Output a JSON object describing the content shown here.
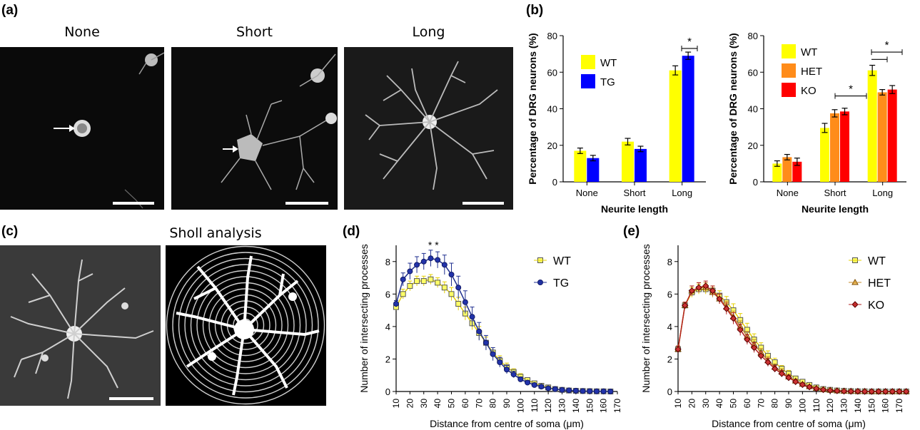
{
  "panel_labels": {
    "a": "(a)",
    "b": "(b)",
    "c": "(c)",
    "d": "(d)",
    "e": "(e)"
  },
  "panel_a": {
    "titles": [
      "None",
      "Short",
      "Long"
    ]
  },
  "panel_c": {
    "title": "Sholl analysis"
  },
  "colors": {
    "wt": "#ffff00",
    "tg": "#0000ff",
    "het": "#ff8c1a",
    "ko": "#ff0000",
    "line_tg": "#1f2f8f",
    "line_wt": "#e6d000",
    "line_het": "#c48a2a",
    "line_ko": "#b22222"
  },
  "chart_data": [
    {
      "id": "b_left",
      "type": "bar",
      "categories": [
        "None",
        "Short",
        "Long"
      ],
      "series": [
        {
          "name": "WT",
          "values": [
            17,
            22,
            61
          ],
          "errors": [
            1.5,
            1.8,
            2.5
          ]
        },
        {
          "name": "TG",
          "values": [
            13,
            18,
            69
          ],
          "errors": [
            1.5,
            1.5,
            2.0
          ]
        }
      ],
      "xlabel": "Neurite length",
      "ylabel": "Percentage of DRG neurons (%)",
      "ylim": [
        0,
        80
      ],
      "yticks": [
        0,
        20,
        40,
        60,
        80
      ],
      "legend": "top-left",
      "annotations": [
        "*"
      ]
    },
    {
      "id": "b_right",
      "type": "bar",
      "categories": [
        "None",
        "Short",
        "Long"
      ],
      "series": [
        {
          "name": "WT",
          "values": [
            10,
            29.5,
            61
          ],
          "errors": [
            1.5,
            2.5,
            2.8
          ]
        },
        {
          "name": "HET",
          "values": [
            13.5,
            37.5,
            49
          ],
          "errors": [
            1.5,
            2.0,
            1.5
          ]
        },
        {
          "name": "KO",
          "values": [
            11,
            38.5,
            50.5
          ],
          "errors": [
            2.0,
            1.8,
            2.2
          ]
        }
      ],
      "xlabel": "Neurite length",
      "ylabel": "Percentage of DRG neurons (%)",
      "ylim": [
        0,
        80
      ],
      "yticks": [
        0,
        20,
        40,
        60,
        80
      ],
      "legend": "top-left",
      "annotations": [
        "*",
        "*"
      ]
    },
    {
      "id": "d",
      "type": "line",
      "x": [
        10,
        15,
        20,
        25,
        30,
        35,
        40,
        45,
        50,
        55,
        60,
        65,
        70,
        75,
        80,
        85,
        90,
        95,
        100,
        105,
        110,
        115,
        120,
        125,
        130,
        135,
        140,
        145,
        150,
        155,
        160,
        165
      ],
      "series": [
        {
          "name": "WT",
          "values": [
            5.2,
            6.0,
            6.5,
            6.8,
            6.8,
            6.9,
            6.7,
            6.4,
            6.0,
            5.4,
            4.8,
            4.2,
            3.6,
            3.0,
            2.4,
            1.9,
            1.5,
            1.2,
            0.9,
            0.7,
            0.5,
            0.35,
            0.25,
            0.15,
            0.1,
            0.06,
            0.04,
            0.03,
            0.02,
            0.01,
            0.01,
            0.0
          ],
          "errors": [
            0.2,
            0.3,
            0.3,
            0.3,
            0.3,
            0.3,
            0.3,
            0.35,
            0.4,
            0.4,
            0.4,
            0.4,
            0.4,
            0.35,
            0.3,
            0.3,
            0.25,
            0.2,
            0.2,
            0.15,
            0.12,
            0.1,
            0.08,
            0.06,
            0.05,
            0.04,
            0.03,
            0.02,
            0.02,
            0.01,
            0.01,
            0.01
          ]
        },
        {
          "name": "TG",
          "values": [
            5.4,
            6.9,
            7.4,
            7.8,
            8.0,
            8.2,
            8.1,
            7.8,
            7.2,
            6.4,
            5.5,
            4.6,
            3.7,
            3.0,
            2.3,
            1.8,
            1.35,
            1.05,
            0.75,
            0.55,
            0.4,
            0.3,
            0.2,
            0.15,
            0.1,
            0.07,
            0.05,
            0.03,
            0.02,
            0.01,
            0.01,
            0.0
          ],
          "errors": [
            0.2,
            0.4,
            0.5,
            0.5,
            0.5,
            0.5,
            0.5,
            0.6,
            0.7,
            0.7,
            0.7,
            0.6,
            0.55,
            0.45,
            0.4,
            0.3,
            0.25,
            0.2,
            0.15,
            0.12,
            0.1,
            0.08,
            0.06,
            0.05,
            0.04,
            0.03,
            0.02,
            0.02,
            0.01,
            0.01,
            0.01,
            0.01
          ]
        }
      ],
      "xticks": [
        10,
        20,
        30,
        40,
        50,
        60,
        70,
        80,
        90,
        100,
        110,
        120,
        130,
        140,
        150,
        160,
        170
      ],
      "yticks": [
        0,
        2,
        4,
        6,
        8
      ],
      "xlabel": "Distance from centre of soma (μm)",
      "ylabel": "Number of intersecting processes",
      "xlim": [
        10,
        170
      ],
      "ylim": [
        0,
        9
      ],
      "legend": "top-right",
      "annotations": [
        "* *"
      ]
    },
    {
      "id": "e",
      "type": "line",
      "x": [
        10,
        15,
        20,
        25,
        30,
        35,
        40,
        45,
        50,
        55,
        60,
        65,
        70,
        75,
        80,
        85,
        90,
        95,
        100,
        105,
        110,
        115,
        120,
        125,
        130,
        135,
        140,
        145,
        150,
        155,
        160,
        165,
        170,
        175
      ],
      "series": [
        {
          "name": "WT",
          "values": [
            2.6,
            5.3,
            6.1,
            6.3,
            6.3,
            6.2,
            5.9,
            5.5,
            5.0,
            4.4,
            3.8,
            3.2,
            2.7,
            2.2,
            1.8,
            1.4,
            1.1,
            0.8,
            0.6,
            0.4,
            0.25,
            0.15,
            0.1,
            0.06,
            0.04,
            0.02,
            0.01,
            0.01,
            0.0,
            0.0,
            0.0,
            0.0,
            0.0,
            0.0
          ],
          "errors": [
            0.2,
            0.2,
            0.3,
            0.3,
            0.3,
            0.3,
            0.3,
            0.35,
            0.4,
            0.4,
            0.4,
            0.35,
            0.3,
            0.3,
            0.25,
            0.2,
            0.2,
            0.15,
            0.12,
            0.1,
            0.08,
            0.06,
            0.05,
            0.04,
            0.03,
            0.02,
            0.01,
            0.01,
            0.01,
            0.01,
            0.01,
            0.01,
            0.01,
            0.01
          ]
        },
        {
          "name": "HET",
          "values": [
            2.6,
            5.3,
            6.2,
            6.4,
            6.4,
            6.1,
            5.7,
            5.2,
            4.6,
            4.0,
            3.4,
            2.9,
            2.4,
            1.9,
            1.5,
            1.2,
            0.9,
            0.65,
            0.45,
            0.3,
            0.2,
            0.12,
            0.08,
            0.05,
            0.03,
            0.02,
            0.01,
            0.01,
            0.0,
            0.0,
            0.0,
            0.0,
            0.0,
            0.0
          ],
          "errors": [
            0.2,
            0.2,
            0.3,
            0.3,
            0.3,
            0.3,
            0.3,
            0.35,
            0.35,
            0.35,
            0.3,
            0.3,
            0.25,
            0.25,
            0.2,
            0.2,
            0.15,
            0.12,
            0.1,
            0.08,
            0.06,
            0.05,
            0.04,
            0.03,
            0.02,
            0.02,
            0.01,
            0.01,
            0.01,
            0.01,
            0.01,
            0.01,
            0.01,
            0.01
          ]
        },
        {
          "name": "KO",
          "values": [
            2.6,
            5.3,
            6.2,
            6.4,
            6.5,
            6.2,
            5.7,
            5.1,
            4.5,
            3.8,
            3.2,
            2.7,
            2.2,
            1.8,
            1.4,
            1.1,
            0.85,
            0.6,
            0.42,
            0.28,
            0.18,
            0.11,
            0.07,
            0.04,
            0.02,
            0.01,
            0.01,
            0.0,
            0.0,
            0.0,
            0.0,
            0.0,
            0.0,
            0.0
          ],
          "errors": [
            0.2,
            0.2,
            0.3,
            0.3,
            0.3,
            0.3,
            0.3,
            0.35,
            0.35,
            0.35,
            0.3,
            0.3,
            0.25,
            0.25,
            0.2,
            0.2,
            0.15,
            0.12,
            0.1,
            0.08,
            0.06,
            0.05,
            0.04,
            0.03,
            0.02,
            0.02,
            0.01,
            0.01,
            0.01,
            0.01,
            0.01,
            0.01,
            0.01,
            0.01
          ]
        }
      ],
      "xticks": [
        10,
        20,
        30,
        40,
        50,
        60,
        70,
        80,
        90,
        100,
        110,
        120,
        130,
        140,
        150,
        160,
        170
      ],
      "yticks": [
        0,
        2,
        4,
        6,
        8
      ],
      "xlabel": "Distance from centre of soma (μm)",
      "ylabel": "Number of intersecting processes",
      "xlim": [
        10,
        175
      ],
      "ylim": [
        0,
        9
      ],
      "legend": "top-right"
    }
  ]
}
